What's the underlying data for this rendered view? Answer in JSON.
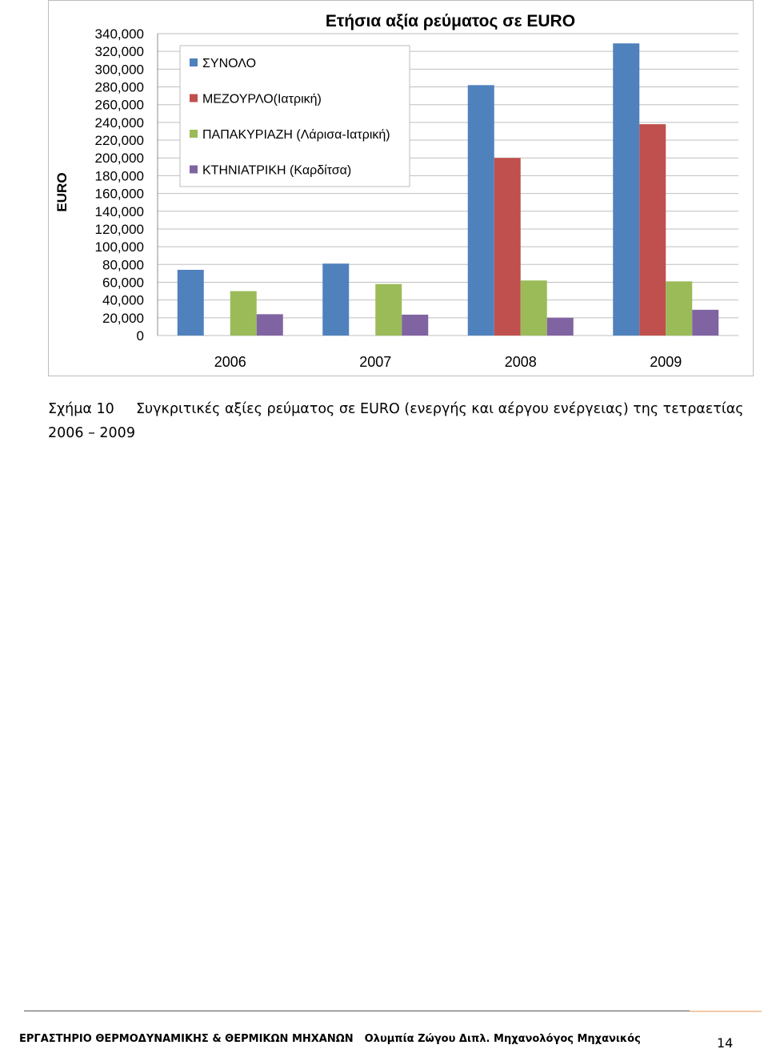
{
  "chart_data": {
    "type": "bar",
    "title": "Ετήσια αξία ρεύματος σε EURO",
    "ylabel": "EURO",
    "xlabel": "",
    "ylim": [
      0,
      340000
    ],
    "yticks": [
      0,
      20000,
      40000,
      60000,
      80000,
      100000,
      120000,
      140000,
      160000,
      180000,
      200000,
      220000,
      240000,
      260000,
      280000,
      300000,
      320000,
      340000
    ],
    "ytick_labels": [
      "0",
      "20,000",
      "40,000",
      "60,000",
      "80,000",
      "100,000",
      "120,000",
      "140,000",
      "160,000",
      "180,000",
      "200,000",
      "220,000",
      "240,000",
      "260,000",
      "280,000",
      "300,000",
      "320,000",
      "340,000"
    ],
    "grid": true,
    "legend_position": "top-left",
    "categories": [
      "2006",
      "2007",
      "2008",
      "2009"
    ],
    "series": [
      {
        "name": "ΣΥΝΟΛΟ",
        "color": "#4F81BD",
        "values": [
          74000,
          81000,
          282000,
          329000
        ]
      },
      {
        "name": "ΜΕΖΟΥΡΛΟ(Ιατρική)",
        "color": "#C0504D",
        "values": [
          0,
          0,
          200000,
          238000
        ]
      },
      {
        "name": "ΠΑΠΑΚΥΡΙΑΖΗ (Λάρισα-Ιατρική)",
        "color": "#9BBB59",
        "values": [
          50000,
          58000,
          62000,
          61000
        ]
      },
      {
        "name": "ΚΤΗΝΙΑΤΡΙΚΗ (Καρδίτσα)",
        "color": "#8064A2",
        "values": [
          24000,
          23500,
          20000,
          29000
        ]
      }
    ]
  },
  "caption": {
    "label": "Σχήμα 10",
    "text": "Συγκριτικές αξίες ρεύματος σε EURO (ενεργής και αέργου ενέργειας) της τετραετίας 2006 – 2009"
  },
  "footer": {
    "lab": "ΕΡΓΑΣΤΗΡΙΟ ΘΕΡΜΟΔΥΝΑΜΙΚΗΣ & ΘΕΡΜΙΚΩΝ ΜΗΧΑΝΩΝ",
    "author": "Ολυμπία Ζώγου Διπλ. Μηχανολόγος Μηχανικός",
    "page_number": "14"
  }
}
